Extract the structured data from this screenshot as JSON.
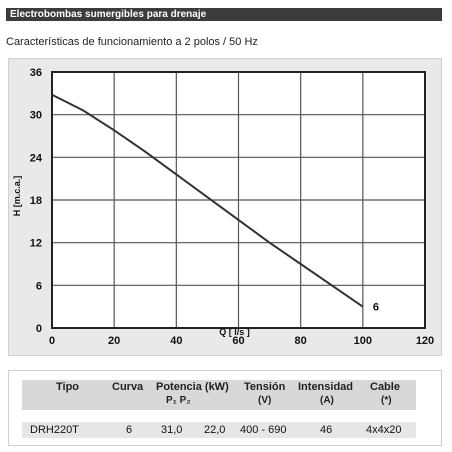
{
  "header": {
    "title": "Electrobombas sumergibles para drenaje"
  },
  "subtitle": "Características de funcionamiento a 2 polos / 50 Hz",
  "chart_data": {
    "type": "line",
    "xlabel": "Q [ l/s ]",
    "ylabel": "H [m.c.a.]",
    "xlim": [
      0,
      120
    ],
    "ylim": [
      0,
      36
    ],
    "xticks": [
      0,
      20,
      40,
      60,
      80,
      100,
      120
    ],
    "yticks": [
      0,
      6,
      12,
      18,
      24,
      30,
      36
    ],
    "grid": true,
    "series": [
      {
        "name": "6",
        "color": "#333333",
        "x": [
          0,
          10,
          20,
          30,
          40,
          50,
          60,
          70,
          80,
          90,
          100
        ],
        "y": [
          32.8,
          30.6,
          27.8,
          24.8,
          21.6,
          18.4,
          15.2,
          12.0,
          9.0,
          6.0,
          3.0
        ]
      }
    ]
  },
  "table": {
    "headers": [
      "Tipo",
      "Curva",
      "Potencia (kW)",
      "Tensión",
      "Intensidad",
      "Cable"
    ],
    "subheaders": [
      "",
      "",
      "P₁   P₂",
      "(V)",
      "(A)",
      "(*)"
    ],
    "row": [
      "DRH220T",
      "6",
      "31,0",
      "22,0",
      "400 - 690",
      "46",
      "4x4x20"
    ]
  }
}
